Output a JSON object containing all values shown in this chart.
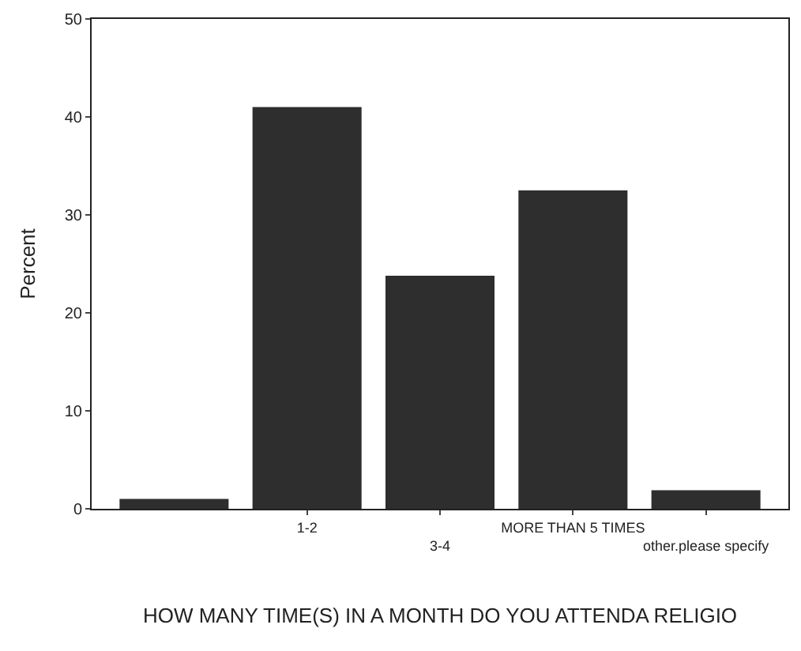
{
  "chart_data": {
    "type": "bar",
    "categories": [
      null,
      "1-2",
      "3-4",
      "MORE THAN 5 TIMES",
      "other.please specify"
    ],
    "values": [
      1.0,
      41.0,
      23.8,
      32.5,
      1.9
    ],
    "color": "#2e2e2e",
    "ylim": [
      0,
      50
    ],
    "yticks": [
      0,
      10,
      20,
      30,
      40,
      50
    ],
    "grid": false,
    "ylabel": "Percent",
    "xlabel": "HOW MANY TIME(S) IN A MONTH DO YOU ATTENDA RELIGIO"
  }
}
